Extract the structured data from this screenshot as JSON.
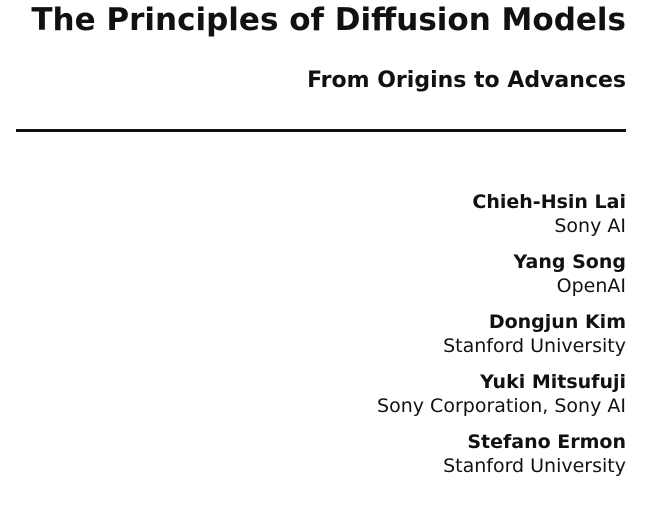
{
  "title": "The Principles of Diffusion Models",
  "subtitle": "From Origins to Advances",
  "authors": [
    {
      "name": "Chieh-Hsin Lai",
      "affiliation": "Sony AI"
    },
    {
      "name": "Yang Song",
      "affiliation": "OpenAI"
    },
    {
      "name": "Dongjun Kim",
      "affiliation": "Stanford University"
    },
    {
      "name": "Yuki Mitsufuji",
      "affiliation": "Sony Corporation, Sony AI"
    },
    {
      "name": "Stefano Ermon",
      "affiliation": "Stanford University"
    }
  ]
}
